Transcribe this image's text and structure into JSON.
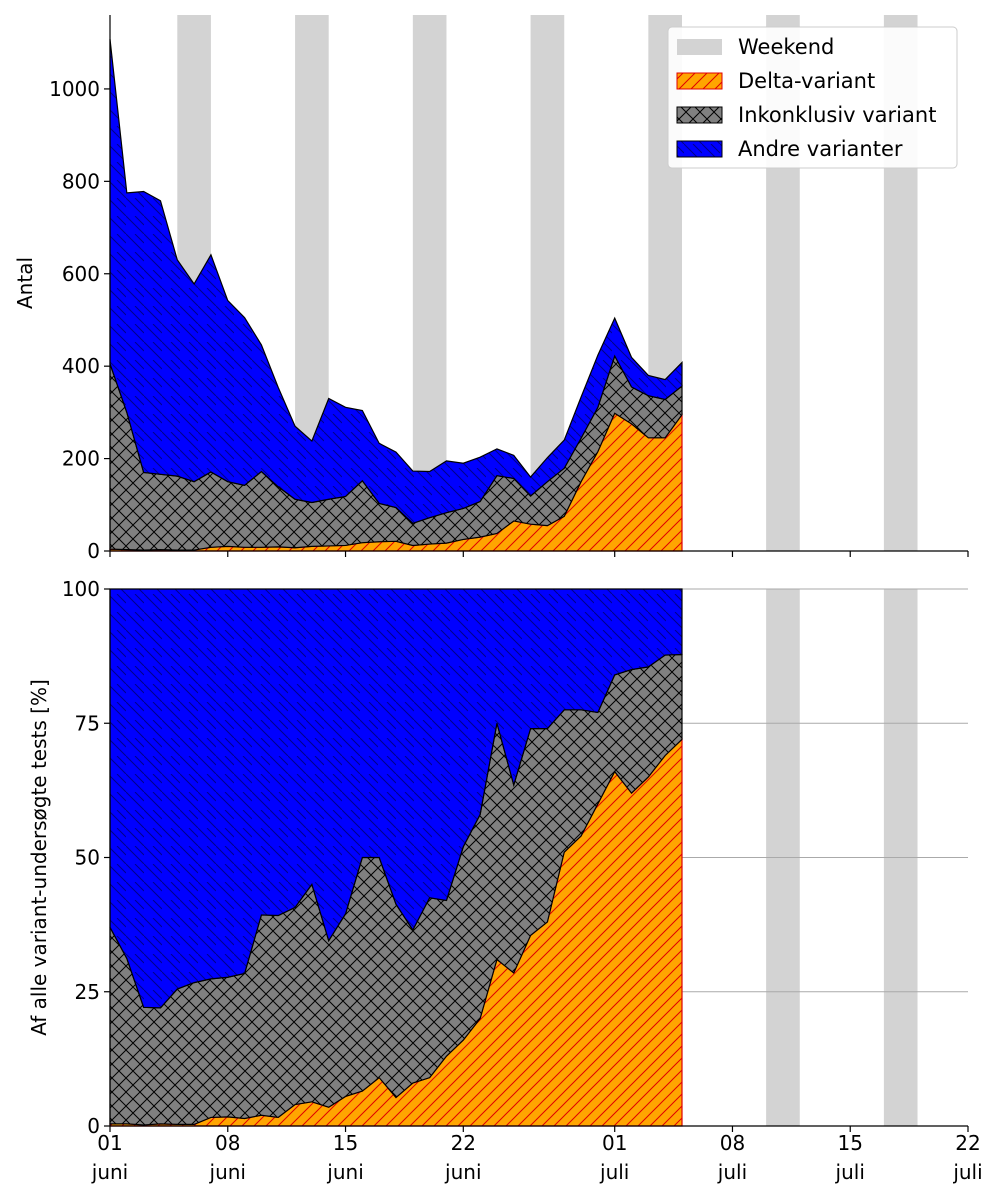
{
  "chart_data": [
    {
      "type": "area",
      "stacked": true,
      "ylabel": "Antal",
      "ylim": [
        0,
        1160
      ],
      "yticks": [
        0,
        200,
        400,
        600,
        800,
        1000
      ],
      "x_start": "2021-06-01",
      "x_end": "2021-07-22",
      "series": [
        {
          "name": "Delta-variant",
          "color": "#ffa500",
          "hatch": "diagonal-up",
          "values": [
            4,
            3,
            2,
            3,
            2,
            2,
            8,
            10,
            8,
            8,
            9,
            7,
            10,
            11,
            12,
            18,
            20,
            21,
            12,
            15,
            17,
            25,
            30,
            38,
            65,
            58,
            55,
            75,
            150,
            215,
            298,
            275,
            245,
            245,
            295
          ]
        },
        {
          "name": "Inkonklusiv variant",
          "color": "#808080",
          "hatch": "cross",
          "values": [
            401,
            297,
            168,
            163,
            160,
            148,
            163,
            140,
            134,
            164,
            130,
            105,
            95,
            101,
            106,
            134,
            83,
            73,
            48,
            57,
            66,
            67,
            77,
            125,
            92,
            61,
            95,
            104,
            94,
            96,
            124,
            80,
            91,
            83,
            62
          ]
        },
        {
          "name": "Andre varianter",
          "color": "#0000ff",
          "hatch": "diagonal-down",
          "values": [
            703,
            475,
            608,
            592,
            468,
            428,
            470,
            392,
            363,
            274,
            215,
            158,
            133,
            218,
            193,
            152,
            130,
            120,
            113,
            100,
            112,
            98,
            96,
            58,
            50,
            41,
            52,
            61,
            89,
            113,
            82,
            64,
            44,
            43,
            51
          ]
        }
      ],
      "weekend_label": "Weekend",
      "weekend_bands": [
        [
          "2021-06-05",
          "2021-06-07"
        ],
        [
          "2021-06-12",
          "2021-06-14"
        ],
        [
          "2021-06-19",
          "2021-06-21"
        ],
        [
          "2021-06-26",
          "2021-06-28"
        ],
        [
          "2021-07-03",
          "2021-07-05"
        ],
        [
          "2021-07-10",
          "2021-07-12"
        ],
        [
          "2021-07-17",
          "2021-07-19"
        ]
      ],
      "legend": "top-right"
    },
    {
      "type": "area",
      "stacked": true,
      "ylabel": "Af alle variant-undersøgte tests [%]",
      "ylim": [
        0,
        100
      ],
      "yticks": [
        0,
        25,
        50,
        75,
        100
      ],
      "grid": "horizontal",
      "x_start": "2021-06-01",
      "x_end": "2021-07-22",
      "series": [
        {
          "name": "Delta-variant",
          "values": [
            0.4,
            0.4,
            0.2,
            0.4,
            0.3,
            0.3,
            1.6,
            1.7,
            1.4,
            2.0,
            1.6,
            4.0,
            4.5,
            3.5,
            5.5,
            6.5,
            9.0,
            5.3,
            8.0,
            9.0,
            13,
            16,
            20,
            31,
            28.5,
            35.5,
            38,
            51,
            54,
            60,
            66,
            62,
            65,
            69,
            72
          ]
        },
        {
          "name": "Inkonklusiv variant",
          "values": [
            36.6,
            30.8,
            21.9,
            21.6,
            25.2,
            26.4,
            25.8,
            26.0,
            27.0,
            37.3,
            37.6,
            36.7,
            40.5,
            31.0,
            34.0,
            43.5,
            41.0,
            36.0,
            28.5,
            33.5,
            29.0,
            36.0,
            38.0,
            44.0,
            35.0,
            38.5,
            36.0,
            26.5,
            23.5,
            17.0,
            18.0,
            23.0,
            20.5,
            18.7,
            15.8
          ]
        }
      ],
      "remainder_series": "Andre varianter",
      "weekend_bands": [
        [
          "2021-06-05",
          "2021-06-07"
        ],
        [
          "2021-06-12",
          "2021-06-14"
        ],
        [
          "2021-06-19",
          "2021-06-21"
        ],
        [
          "2021-06-26",
          "2021-06-28"
        ],
        [
          "2021-07-03",
          "2021-07-05"
        ],
        [
          "2021-07-10",
          "2021-07-12"
        ],
        [
          "2021-07-17",
          "2021-07-19"
        ]
      ]
    }
  ],
  "x_axis": {
    "ticks": [
      {
        "date": "2021-06-01",
        "day": "01",
        "month": "juni"
      },
      {
        "date": "2021-06-08",
        "day": "08",
        "month": "juni"
      },
      {
        "date": "2021-06-15",
        "day": "15",
        "month": "juni"
      },
      {
        "date": "2021-06-22",
        "day": "22",
        "month": "juni"
      },
      {
        "date": "2021-07-01",
        "day": "01",
        "month": "juli"
      },
      {
        "date": "2021-07-08",
        "day": "08",
        "month": "juli"
      },
      {
        "date": "2021-07-15",
        "day": "15",
        "month": "juli"
      },
      {
        "date": "2021-07-22",
        "day": "22",
        "month": "juli"
      }
    ]
  },
  "colors": {
    "delta": "#ffa500",
    "delta_edge": "#e00000",
    "inconclusive": "#808080",
    "other": "#0000ff",
    "weekend": "#d3d3d3"
  }
}
